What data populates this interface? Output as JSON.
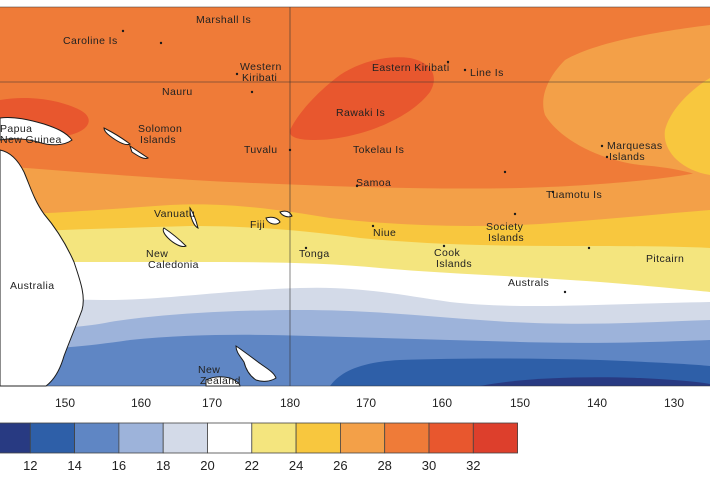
{
  "map": {
    "places": [
      {
        "id": "marshall-is",
        "lines": [
          "Marshall Is"
        ]
      },
      {
        "id": "caroline-is",
        "lines": [
          "Caroline Is"
        ]
      },
      {
        "id": "western-kiribati",
        "lines": [
          "Western",
          "Kiribati"
        ]
      },
      {
        "id": "eastern-kiribati",
        "lines": [
          "Eastern Kiribati"
        ]
      },
      {
        "id": "line-is",
        "lines": [
          "Line Is"
        ]
      },
      {
        "id": "nauru",
        "lines": [
          "Nauru"
        ]
      },
      {
        "id": "rawaki-is",
        "lines": [
          "Rawaki Is"
        ]
      },
      {
        "id": "papua-new-guinea",
        "lines": [
          "Papua",
          "New Guinea"
        ]
      },
      {
        "id": "solomon-islands",
        "lines": [
          "Solomon",
          "Islands"
        ]
      },
      {
        "id": "tuvalu",
        "lines": [
          "Tuvalu"
        ]
      },
      {
        "id": "tokelau-is",
        "lines": [
          "Tokelau Is"
        ]
      },
      {
        "id": "marquesas-islands",
        "lines": [
          "Marquesas",
          "Islands"
        ]
      },
      {
        "id": "samoa",
        "lines": [
          "Samoa"
        ]
      },
      {
        "id": "tuamotu-is",
        "lines": [
          "Tuamotu Is"
        ]
      },
      {
        "id": "vanuatu",
        "lines": [
          "Vanuatu"
        ]
      },
      {
        "id": "fiji",
        "lines": [
          "Fiji"
        ]
      },
      {
        "id": "niue",
        "lines": [
          "Niue"
        ]
      },
      {
        "id": "society-islands",
        "lines": [
          "Society",
          "Islands"
        ]
      },
      {
        "id": "new-caledonia",
        "lines": [
          "New",
          "Caledonia"
        ]
      },
      {
        "id": "tonga",
        "lines": [
          "Tonga"
        ]
      },
      {
        "id": "cook-islands",
        "lines": [
          "Cook",
          "Islands"
        ]
      },
      {
        "id": "pitcairn",
        "lines": [
          "Pitcairn"
        ]
      },
      {
        "id": "australia",
        "lines": [
          "Australia"
        ]
      },
      {
        "id": "australs",
        "lines": [
          "Australs"
        ]
      },
      {
        "id": "new-zealand",
        "lines": [
          "New",
          "Zealand"
        ]
      }
    ],
    "longitude_labels": [
      "150",
      "160",
      "170",
      "180",
      "170",
      "160",
      "150",
      "140",
      "130"
    ]
  },
  "colorbar": {
    "ticks": [
      "12",
      "14",
      "16",
      "18",
      "20",
      "22",
      "24",
      "26",
      "28",
      "30",
      "32"
    ],
    "colors": [
      "#283a82",
      "#2e5fa8",
      "#5f86c4",
      "#9db3da",
      "#d3dae8",
      "#ffffff",
      "#f4e57e",
      "#f8c73e",
      "#f3a048",
      "#ef7b38",
      "#e8572e",
      "#dd3f2c"
    ]
  },
  "colors": {
    "land": "#ffffff",
    "coastline": "#1a1a1a",
    "gridline": "#333333"
  }
}
